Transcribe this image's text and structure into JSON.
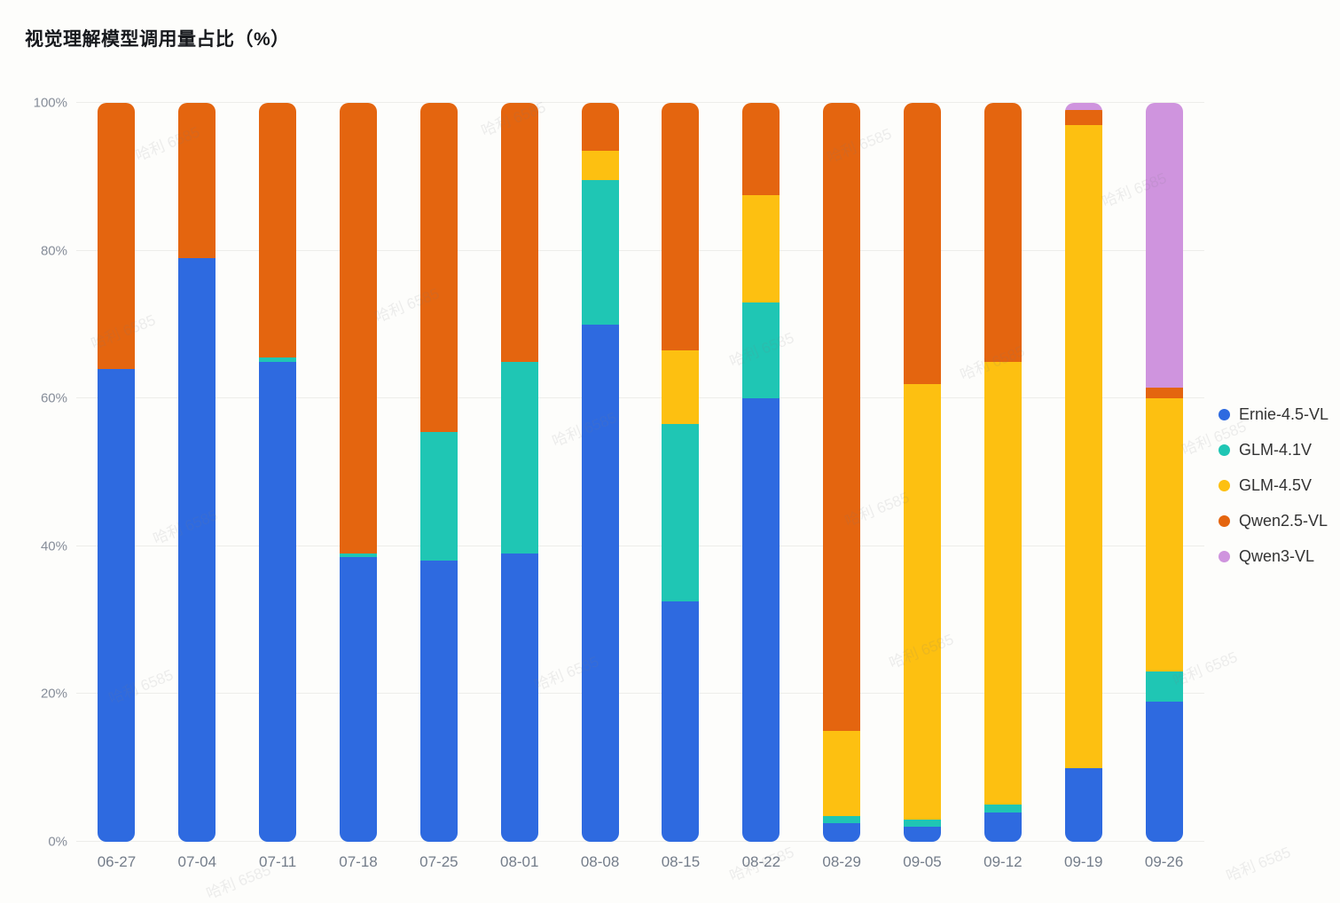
{
  "title": "视觉理解模型调用量占比（%）",
  "watermark_text": "哈利 6585",
  "chart_data": {
    "type": "bar",
    "stacked": true,
    "unit": "%",
    "title": "视觉理解模型调用量占比（%）",
    "xlabel": "",
    "ylabel": "",
    "ylim": [
      0,
      100
    ],
    "grid": true,
    "legend_position": "right",
    "y_ticks": [
      "0%",
      "20%",
      "40%",
      "60%",
      "80%",
      "100%"
    ],
    "y_tick_values": [
      0,
      20,
      40,
      60,
      80,
      100
    ],
    "categories": [
      "06-27",
      "07-04",
      "07-11",
      "07-18",
      "07-25",
      "08-01",
      "08-08",
      "08-15",
      "08-22",
      "08-29",
      "09-05",
      "09-12",
      "09-19",
      "09-26"
    ],
    "series": [
      {
        "name": "Ernie-4.5-VL",
        "color": "#2E6AE0",
        "values": [
          64,
          79,
          65,
          38.5,
          38,
          39,
          70,
          32.5,
          60,
          2.5,
          2,
          4,
          10,
          19
        ]
      },
      {
        "name": "GLM-4.1V",
        "color": "#1FC6B4",
        "values": [
          0,
          0,
          0.5,
          0.5,
          17.5,
          26,
          19.5,
          24,
          13,
          1,
          1,
          1,
          0,
          4
        ]
      },
      {
        "name": "GLM-4.5V",
        "color": "#FDC011",
        "values": [
          0,
          0,
          0,
          0,
          0,
          0,
          4,
          10,
          14.5,
          11.5,
          59,
          60,
          87,
          37
        ]
      },
      {
        "name": "Qwen2.5-VL",
        "color": "#E4650F",
        "values": [
          36,
          21,
          34.5,
          61,
          44.5,
          35,
          6.5,
          33.5,
          12.5,
          85,
          38,
          35,
          2,
          1.5
        ]
      },
      {
        "name": "Qwen3-VL",
        "color": "#CF94DE",
        "values": [
          0,
          0,
          0,
          0,
          0,
          0,
          0,
          0,
          0,
          0,
          0,
          0,
          1,
          38.5
        ]
      }
    ]
  }
}
